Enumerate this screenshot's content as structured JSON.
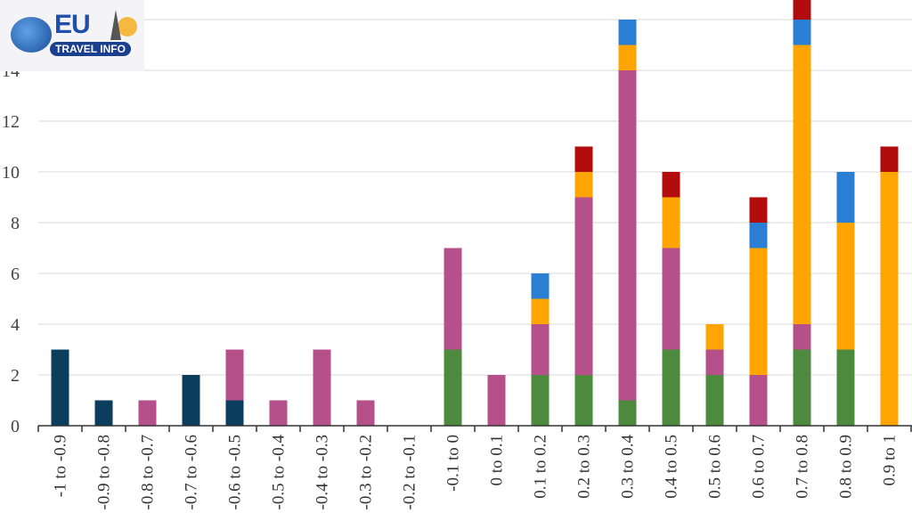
{
  "logo": {
    "text_main": "EU",
    "text_sub_1": "TRAVEL",
    "text_sub_2": "INFO"
  },
  "chart_data": {
    "type": "bar",
    "stacked": true,
    "title": "",
    "xlabel": "",
    "ylabel": "",
    "ylim": [
      0,
      16
    ],
    "yticks": [
      0,
      2,
      4,
      6,
      8,
      10,
      12,
      14,
      16
    ],
    "grid": "horizontal",
    "legend": "none",
    "categories": [
      "-1 to -0.9",
      "-0.9 to -0.8",
      "-0.8 to -0.7",
      "-0.7 to -0.6",
      "-0.6 to -0.5",
      "-0.5 to -0.4",
      "-0.4 to -0.3",
      "-0.3 to -0.2",
      "-0.2 to -0.1",
      "-0.1 to 0",
      "0 to 0.1",
      "0.1 to 0.2",
      "0.2 to 0.3",
      "0.3 to 0.4",
      "0.4 to 0.5",
      "0.5 to 0.6",
      "0.6 to 0.7",
      "0.7 to 0.8",
      "0.8 to 0.9",
      "0.9 to 1"
    ],
    "series": [
      {
        "color": "#0b3d5c",
        "values": [
          3,
          1,
          0,
          2,
          1,
          0,
          0,
          0,
          0,
          0,
          0,
          0,
          0,
          0,
          0,
          0,
          0,
          0,
          0,
          0
        ]
      },
      {
        "color": "#4e8a3e",
        "values": [
          0,
          0,
          0,
          0,
          0,
          0,
          0,
          0,
          0,
          3,
          0,
          2,
          2,
          1,
          3,
          2,
          0,
          3,
          3,
          0
        ]
      },
      {
        "color": "#b5508a",
        "values": [
          0,
          0,
          1,
          0,
          2,
          1,
          3,
          1,
          0,
          4,
          2,
          2,
          7,
          13,
          4,
          1,
          2,
          1,
          0,
          0
        ]
      },
      {
        "color": "#ffa400",
        "values": [
          0,
          0,
          0,
          0,
          0,
          0,
          0,
          0,
          0,
          0,
          0,
          1,
          1,
          1,
          2,
          1,
          5,
          11,
          5,
          10
        ]
      },
      {
        "color": "#2a7fd4",
        "values": [
          0,
          0,
          0,
          0,
          0,
          0,
          0,
          0,
          0,
          0,
          0,
          1,
          0,
          1,
          0,
          0,
          1,
          1,
          2,
          0
        ]
      },
      {
        "color": "#b30c0c",
        "values": [
          0,
          0,
          0,
          0,
          0,
          0,
          0,
          0,
          0,
          0,
          0,
          0,
          1,
          0,
          1,
          0,
          1,
          1,
          0,
          1
        ]
      }
    ]
  }
}
